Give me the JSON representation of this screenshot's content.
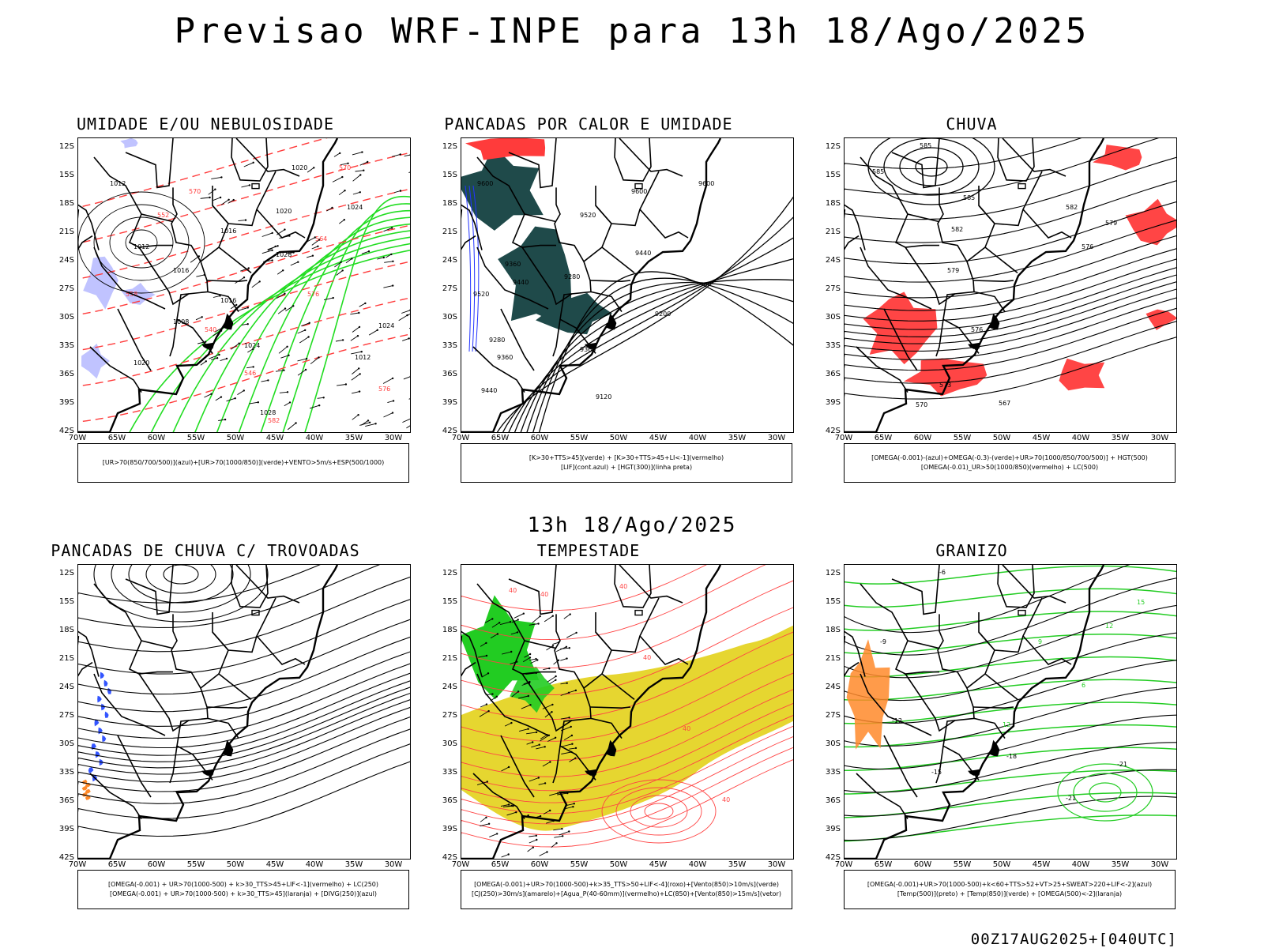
{
  "title": "Previsao WRF-INPE  para 13h 18/Ago/2025",
  "subtitle": "13h 18/Ago/2025",
  "footer": "00Z17AUG2025+[040UTC]",
  "axes": {
    "lat_labels": [
      "12S",
      "15S",
      "18S",
      "21S",
      "24S",
      "27S",
      "30S",
      "33S",
      "36S",
      "39S",
      "42S"
    ],
    "lon_labels": [
      "70W",
      "65W",
      "60W",
      "55W",
      "50W",
      "45W",
      "40W",
      "35W",
      "30W"
    ]
  },
  "panels": [
    {
      "title": "UMIDADE E/OU NEBULOSIDADE",
      "legend": [
        "[UR>70(850/700/500)](azul)+[UR>70(1000/850)](verde)+VENTO>5m/s+ESP(500/1000)"
      ],
      "contour_labels": [
        "1012",
        "1012",
        "1016",
        "1016",
        "1020",
        "1020",
        "1024",
        "1024",
        "1028",
        "1028",
        "1008",
        "1012",
        "1016",
        "1020",
        "1024",
        "570",
        "576",
        "564",
        "558",
        "552",
        "546",
        "540",
        "570",
        "576",
        "582"
      ],
      "colors": {
        "primary": "#ff3b3b",
        "secondary": "#22dd22",
        "tertiary": "#b0b4ff"
      }
    },
    {
      "title": "PANCADAS POR CALOR E UMIDADE",
      "legend": [
        "[K>30+TTS>45](verde) + [K>30+TTS>45+LI<-1](vermelho)",
        "[LIF](cont.azul) + [HGT(300)](linha preta)"
      ],
      "contour_labels": [
        "9600",
        "9600",
        "9600",
        "9520",
        "9440",
        "9440",
        "9360",
        "9280",
        "9200",
        "9120",
        "9360",
        "9280",
        "9360",
        "9440",
        "9520"
      ],
      "colors": {
        "primary": "#1f4a4a",
        "secondary": "#ff3b3b",
        "tertiary": "#2233ff"
      }
    },
    {
      "title": "CHUVA",
      "legend": [
        "[OMEGA(-0.001)-(azul)+OMEGA(-0.3)-(verde)+UR>70(1000/850/700/500)] + HGT(500)",
        "[OMEGA(-0.01)_UR>50(1000/850)(vermelho) + LC(500)"
      ],
      "contour_labels": [
        "585",
        "585",
        "585",
        "582",
        "579",
        "576",
        "573",
        "570",
        "567",
        "576",
        "579",
        "582"
      ],
      "colors": {
        "primary": "#ff3b3b",
        "secondary": "#22aa22",
        "tertiary": "#2233ff"
      }
    },
    {
      "title": "PANCADAS DE CHUVA C/ TROVOADAS",
      "legend": [
        "[OMEGA(-0.001) + UR>70(1000-500) + k>30_TTS>45+LIF<-1](vermelho) + LC(250)",
        "[OMEGA(-0.001) + UR>70(1000-500) + k>30_TTS>45](laranja) + [DIVG(250)](azul)"
      ],
      "contour_labels": [],
      "colors": {
        "primary": "#3355ff",
        "secondary": "#ff8a2a",
        "tertiary": "#ff3b3b"
      }
    },
    {
      "title": "TEMPESTADE",
      "legend": [
        "[OMEGA(-0.001)+UR>70(1000-500)+k>35_TTS>50+LIF<-4](roxo)+[Vento(850)>10m/s](verde)",
        "[CJ(250)>30m/s](amarelo)+[Agua_P(40-60mm)](vermelho)+LC(850)+[Vento(850)>15m/s](vetor)"
      ],
      "contour_labels": [
        "40",
        "40",
        "40",
        "40",
        "40",
        "40"
      ],
      "colors": {
        "primary": "#e6d630",
        "secondary": "#22cc22",
        "tertiary": "#ff4444"
      }
    },
    {
      "title": "GRANIZO",
      "legend": [
        "[OMEGA(-0.001)+UR>70(1000-500)+k<60+TTS>52+VT>25+SWEAT>220+LIF<-2](azul)",
        "[Temp(500)](preto) + [Temp(850)](verde) + [OMEGA(500)<-2](laranja)"
      ],
      "contour_labels": [
        "-6",
        "-9",
        "-12",
        "-15",
        "-18",
        "-21",
        "-21",
        "12",
        "12",
        "15",
        "9",
        "6"
      ],
      "colors": {
        "primary": "#22cc22",
        "secondary": "#ff8a2a",
        "tertiary": "#000000"
      }
    }
  ]
}
